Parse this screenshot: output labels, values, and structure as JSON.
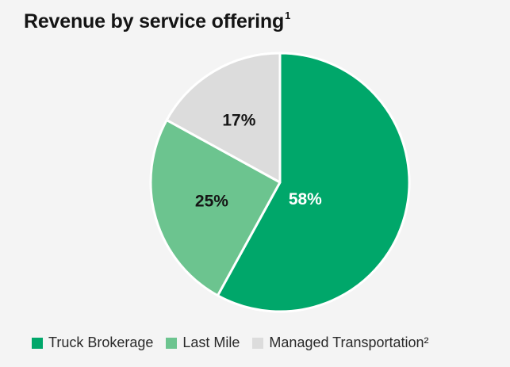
{
  "chart_data": {
    "type": "pie",
    "title": "Revenue by service offering",
    "title_footnote": "1",
    "slices": [
      {
        "label": "Truck Brokerage",
        "value": 58,
        "display": "58%",
        "color": "#00a76a",
        "label_color": "#ffffff"
      },
      {
        "label": "Last Mile",
        "value": 25,
        "display": "25%",
        "color": "#6cc48f",
        "label_color": "#151515"
      },
      {
        "label": "Managed Transportation²",
        "value": 17,
        "display": "17%",
        "color": "#dcdcdc",
        "label_color": "#151515"
      }
    ],
    "start_angle_deg": 0,
    "direction": "clockwise",
    "legend_position": "bottom"
  }
}
